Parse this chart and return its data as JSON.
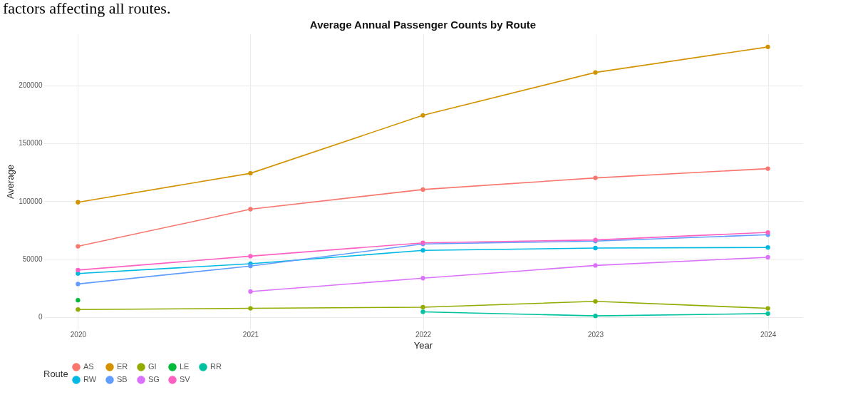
{
  "chart_data": {
    "type": "line",
    "title": "Average Annual Passenger Counts by Route",
    "xlabel": "Year",
    "ylabel": "Average",
    "legend_title": "Route",
    "annotations": [
      "factors affecting all routes."
    ],
    "x": [
      2020,
      2021,
      2022,
      2023,
      2024
    ],
    "series": [
      {
        "name": "AS",
        "color": "#f8766d",
        "values": [
          61000,
          93000,
          110000,
          120000,
          128000
        ]
      },
      {
        "name": "ER",
        "color": "#d39200",
        "values": [
          99000,
          124000,
          174000,
          211000,
          233000
        ]
      },
      {
        "name": "GI",
        "color": "#93aa00",
        "values": [
          6500,
          7500,
          8500,
          13500,
          7500
        ]
      },
      {
        "name": "LE",
        "color": "#00ba38",
        "values": [
          14500,
          null,
          null,
          null,
          null
        ]
      },
      {
        "name": "RR",
        "color": "#00c19f",
        "values": [
          null,
          null,
          4500,
          1000,
          3000
        ]
      },
      {
        "name": "RW",
        "color": "#00b9e3",
        "values": [
          37500,
          46000,
          57500,
          59500,
          60000
        ]
      },
      {
        "name": "SB",
        "color": "#619cff",
        "values": [
          28500,
          44000,
          63000,
          65500,
          71000
        ]
      },
      {
        "name": "SG",
        "color": "#db72fb",
        "values": [
          null,
          22000,
          33500,
          44500,
          51500
        ]
      },
      {
        "name": "SV",
        "color": "#ff61c3",
        "values": [
          40500,
          52500,
          64000,
          66500,
          73000
        ]
      }
    ],
    "xlim": [
      2019.8,
      2024.2
    ],
    "xticks": [
      2020,
      2021,
      2022,
      2023,
      2024
    ],
    "ylim": [
      -10600,
      244600
    ],
    "yticks": [
      0,
      50000,
      100000,
      150000,
      200000
    ],
    "grid": true,
    "legend": "bottom",
    "marker": "circle",
    "line_style": "solid"
  }
}
